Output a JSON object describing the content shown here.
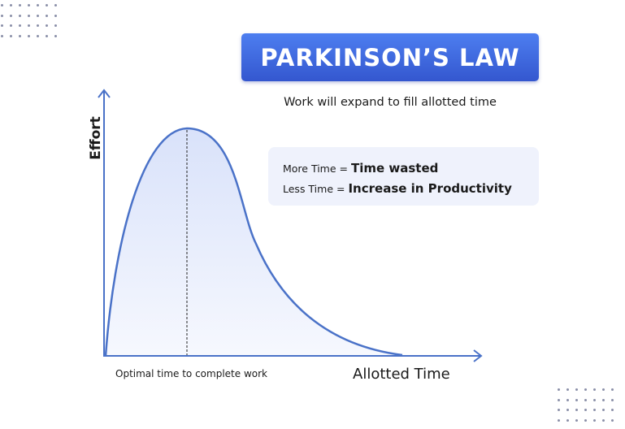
{
  "title": "PARKINSON’S LAW",
  "subtitle": "Work will expand to fill allotted time",
  "info": {
    "rows": [
      {
        "prefix": "More Time =",
        "emphasis": "Time wasted"
      },
      {
        "prefix": "Less Time =",
        "emphasis": "Increase in Productivity"
      }
    ]
  },
  "diagram": {
    "y_axis_label": "Effort",
    "x_axis_label": "Allotted Time",
    "marker_label": "Optimal time to complete work"
  },
  "colors": {
    "accent": "#3f67df",
    "curve": "#4a72c8",
    "fill": "#e3e9fb",
    "info_bg": "#eff2fc"
  }
}
